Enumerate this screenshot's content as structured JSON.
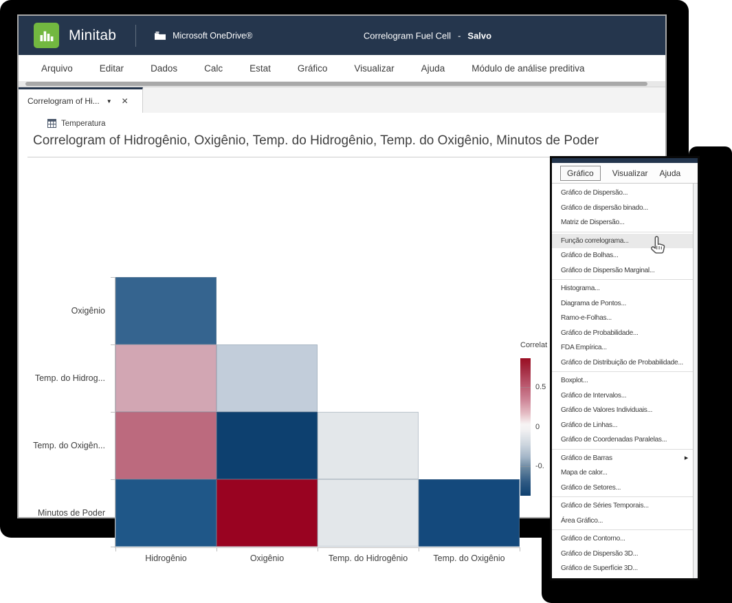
{
  "colors": {
    "header_bg": "#25364d",
    "logo_green": "#72b840",
    "tab_accent_border": "#25364d",
    "menu_hover_row": "#e9e9e9",
    "legend_positive": "#9a0d22",
    "legend_zero": "#f7f4f4",
    "legend_negative": "#0e406f"
  },
  "window": {
    "brand": "Minitab",
    "storage_label": "Microsoft OneDrive®",
    "doc_title": "Correlogram Fuel Cell",
    "doc_separator": "-",
    "doc_status": "Salvo",
    "menubar": [
      "Arquivo",
      "Editar",
      "Dados",
      "Calc",
      "Estat",
      "Gráfico",
      "Visualizar",
      "Ajuda",
      "Módulo de análise preditiva"
    ],
    "tab": {
      "label": "Correlogram of Hi...",
      "caret_glyph": "▼",
      "close_glyph": "✕"
    },
    "worksheet_label": "Temperatura",
    "output_title": "Correlogram of Hidrogênio, Oxigênio, Temp. do Hidrogênio, Temp. do Oxigênio, Minutos de Poder"
  },
  "chart_data": {
    "type": "heatmap",
    "subtype": "correlogram-lower-triangle",
    "title": "Correlogram of Hidrogênio, Oxigênio, Temp. do Hidrogênio, Temp. do Oxigênio, Minutos de Poder",
    "x_categories": [
      "Hidrogênio",
      "Oxigênio",
      "Temp. do Hidrogênio",
      "Temp. do Oxigênio"
    ],
    "y_categories": [
      "Oxigênio",
      "Temp. do Hidrog...",
      "Temp. do Oxigên...",
      "Minutos de Poder"
    ],
    "cells": [
      {
        "y": "Oxigênio",
        "x": "Hidrogênio",
        "corr_est": -0.55,
        "color": "#35648f"
      },
      {
        "y": "Temp. do Hidrog...",
        "x": "Hidrogênio",
        "corr_est": 0.28,
        "color": "#d2a6b3"
      },
      {
        "y": "Temp. do Hidrog...",
        "x": "Oxigênio",
        "corr_est": -0.18,
        "color": "#c2cdda"
      },
      {
        "y": "Temp. do Oxigên...",
        "x": "Hidrogênio",
        "corr_est": 0.48,
        "color": "#bc6a7e"
      },
      {
        "y": "Temp. do Oxigên...",
        "x": "Oxigênio",
        "corr_est": -0.92,
        "color": "#0d406f"
      },
      {
        "y": "Temp. do Oxigên...",
        "x": "Temp. do Hidrogênio",
        "corr_est": -0.05,
        "color": "#e3e7ea"
      },
      {
        "y": "Minutos de Poder",
        "x": "Hidrogênio",
        "corr_est": -0.68,
        "color": "#1f5788"
      },
      {
        "y": "Minutos de Poder",
        "x": "Oxigênio",
        "corr_est": 0.95,
        "color": "#990321"
      },
      {
        "y": "Minutos de Poder",
        "x": "Temp. do Hidrogênio",
        "corr_est": -0.05,
        "color": "#e3e7ea"
      },
      {
        "y": "Minutos de Poder",
        "x": "Temp. do Oxigênio",
        "corr_est": -0.75,
        "color": "#14497c"
      }
    ],
    "legend": {
      "title": "Correlat",
      "tick_labels": [
        "0.5",
        "0",
        "-0."
      ],
      "gradient": [
        "#9a0d22",
        "#f7f4f4",
        "#0e406f"
      ],
      "orientation": "vertical",
      "position": "right"
    },
    "grid": false
  },
  "popup": {
    "tabs": [
      "Gráfico",
      "Visualizar",
      "Ajuda"
    ],
    "active_tab": "Gráfico",
    "hovered_item": "Função correlograma...",
    "menu_groups": [
      {
        "items": [
          {
            "label": "Gráfico de Dispersão..."
          },
          {
            "label": "Gráfico de dispersão binado..."
          },
          {
            "label": "Matriz de Dispersão..."
          }
        ]
      },
      {
        "items": [
          {
            "label": "Função correlograma...",
            "hover": true
          },
          {
            "label": "Gráfico de Bolhas..."
          },
          {
            "label": "Gráfico de Dispersão Marginal..."
          }
        ]
      },
      {
        "items": [
          {
            "label": "Histograma..."
          },
          {
            "label": "Diagrama de Pontos..."
          },
          {
            "label": "Ramo-e-Folhas..."
          },
          {
            "label": "Gráfico de Probabilidade..."
          },
          {
            "label": "FDA Empírica..."
          },
          {
            "label": "Gráfico de Distribuição de Probabilidade..."
          }
        ]
      },
      {
        "items": [
          {
            "label": "Boxplot..."
          },
          {
            "label": "Gráfico de Intervalos..."
          },
          {
            "label": "Gráfico de Valores Individuais..."
          },
          {
            "label": "Gráfico de Linhas..."
          },
          {
            "label": "Gráfico de Coordenadas Paralelas..."
          }
        ]
      },
      {
        "items": [
          {
            "label": "Gráfico de Barras",
            "submenu": true
          },
          {
            "label": "Mapa de calor..."
          },
          {
            "label": "Gráfico de Setores..."
          }
        ]
      },
      {
        "items": [
          {
            "label": "Gráfico de Séries Temporais..."
          },
          {
            "label": "Área Gráfico..."
          }
        ]
      },
      {
        "items": [
          {
            "label": "Gráfico de Contorno..."
          },
          {
            "label": "Gráfico de Dispersão 3D..."
          },
          {
            "label": "Gráfico de Superfície 3D..."
          }
        ]
      }
    ],
    "submenu_arrow_glyph": "▶"
  }
}
